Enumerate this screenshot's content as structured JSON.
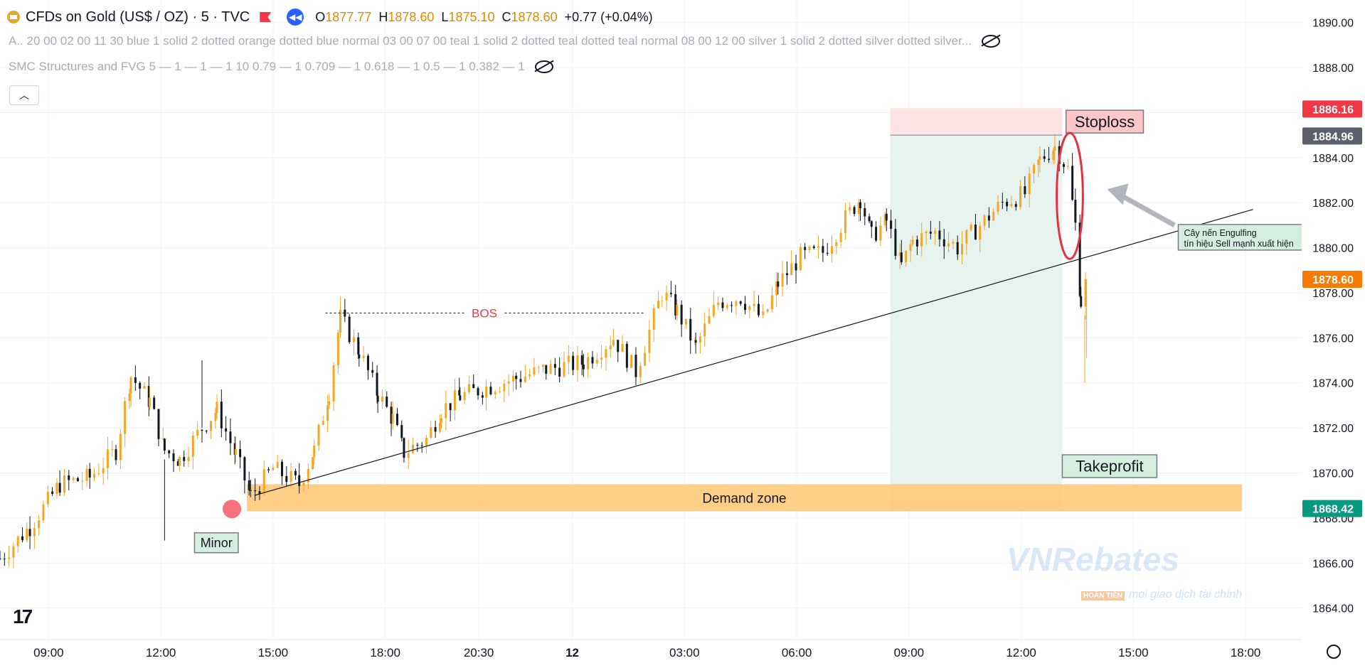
{
  "header": {
    "symbol_title": "CFDs on Gold (US$ / OZ) · 5 · TVC",
    "open_label": "O",
    "open": "1877.77",
    "high_label": "H",
    "high": "1878.60",
    "low_label": "L",
    "low": "1875.10",
    "close_label": "C",
    "close": "1878.60",
    "change": "+0.77 (+0.04%)"
  },
  "indicators": [
    {
      "text": "A.. 20 00 02 00 11 30 blue 1 solid 2 dotted orange dotted blue normal 03 00 07 00 teal 1 solid 2 dotted teal dotted teal normal 08 00 12 00 silver 1 solid 2 dotted silver dotted silver..."
    },
    {
      "text": "SMC Structures and FVG 5 — 1 — 1 — 1 10 0.79 — 1 0.709 — 1 0.618 — 1 0.5 — 1 0.382 — 1"
    }
  ],
  "icons": {
    "collapse": "chevron-up-icon",
    "visibility": "eye-off-icon",
    "settings": "gear-icon",
    "logo": "tradingview-logo-icon",
    "replay": "replay-icon",
    "flag": "flag-icon"
  },
  "watermark": {
    "brand": "VNRebates",
    "tag": "HOÀN TIỀN",
    "slogan": "mọi giao dịch tài chính"
  },
  "colors": {
    "up": "#f5a623",
    "down": "#131722",
    "accent": "#2962ff",
    "stoploss_zone": "#fde4e4",
    "profit_zone": "#e6f3ee",
    "demand_zone": "#ffc97a"
  },
  "chart_data": {
    "type": "candlestick",
    "ylim": [
      1862.6,
      1891.0
    ],
    "y_ticks": [
      "1890.00",
      "1888.00",
      "1886.00",
      "1884.00",
      "1882.00",
      "1880.00",
      "1878.00",
      "1876.00",
      "1874.00",
      "1872.00",
      "1870.00",
      "1868.00",
      "1866.00",
      "1864.00"
    ],
    "x_ticks": [
      {
        "label": "09:00",
        "t": 0.5
      },
      {
        "label": "12:00",
        "t": 3.5
      },
      {
        "label": "15:00",
        "t": 6.5
      },
      {
        "label": "18:00",
        "t": 9.5
      },
      {
        "label": "20:30",
        "t": 12.0
      },
      {
        "label": "12",
        "t": 14.5
      },
      {
        "label": "03:00",
        "t": 17.5
      },
      {
        "label": "06:00",
        "t": 20.5
      },
      {
        "label": "09:00",
        "t": 23.5
      },
      {
        "label": "12:00",
        "t": 26.5
      },
      {
        "label": "15:00",
        "t": 29.5
      },
      {
        "label": "18:00",
        "t": 32.5
      }
    ],
    "xlim": [
      -0.8,
      34.0
    ],
    "price_labels": [
      {
        "value": "1886.16",
        "price": 1886.16,
        "color": "#f23645"
      },
      {
        "value": "1884.96",
        "price": 1884.96,
        "color": "#5d606b"
      },
      {
        "value": "1878.60",
        "price": 1878.6,
        "color": "#f57c00"
      },
      {
        "value": "1868.42",
        "price": 1868.42,
        "color": "#089981"
      }
    ],
    "candle_path": [
      [
        -0.8,
        1866.2
      ],
      [
        0.0,
        1867.6
      ],
      [
        0.8,
        1869.5
      ],
      [
        1.6,
        1869.8
      ],
      [
        2.3,
        1871.0
      ],
      [
        2.7,
        1874.3
      ],
      [
        3.2,
        1873.2
      ],
      [
        3.6,
        1871.0
      ],
      [
        4.0,
        1870.6
      ],
      [
        4.6,
        1872.0
      ],
      [
        5.0,
        1872.8
      ],
      [
        5.5,
        1870.8
      ],
      [
        5.9,
        1869.0
      ],
      [
        6.5,
        1870.2
      ],
      [
        7.2,
        1869.5
      ],
      [
        7.6,
        1871.0
      ],
      [
        8.0,
        1873.6
      ],
      [
        8.3,
        1876.9
      ],
      [
        8.8,
        1875.4
      ],
      [
        9.3,
        1873.5
      ],
      [
        9.7,
        1872.4
      ],
      [
        10.0,
        1870.9
      ],
      [
        10.6,
        1871.5
      ],
      [
        11.0,
        1872.8
      ],
      [
        11.5,
        1873.4
      ],
      [
        12.2,
        1873.8
      ],
      [
        13.0,
        1874.2
      ],
      [
        13.8,
        1874.6
      ],
      [
        14.8,
        1874.9
      ],
      [
        15.6,
        1876.0
      ],
      [
        16.2,
        1874.5
      ],
      [
        16.9,
        1878.0
      ],
      [
        17.3,
        1877.2
      ],
      [
        17.8,
        1875.6
      ],
      [
        18.4,
        1877.6
      ],
      [
        19.0,
        1877.8
      ],
      [
        19.6,
        1876.8
      ],
      [
        20.0,
        1878.4
      ],
      [
        20.6,
        1879.6
      ],
      [
        21.2,
        1879.8
      ],
      [
        21.8,
        1881.3
      ],
      [
        22.2,
        1882.2
      ],
      [
        22.5,
        1880.5
      ],
      [
        22.9,
        1881.2
      ],
      [
        23.3,
        1879.2
      ],
      [
        23.6,
        1880.3
      ],
      [
        24.2,
        1880.7
      ],
      [
        24.8,
        1880.0
      ],
      [
        25.4,
        1881.0
      ],
      [
        26.0,
        1882.0
      ],
      [
        26.6,
        1882.4
      ],
      [
        27.0,
        1883.9
      ],
      [
        27.4,
        1884.5
      ],
      [
        27.75,
        1883.5
      ],
      [
        27.95,
        1881.0
      ],
      [
        28.1,
        1877.6
      ],
      [
        28.25,
        1878.6
      ]
    ],
    "annotations": {
      "bos": {
        "label": "BOS",
        "x1": 7.9,
        "x2": 16.4,
        "price": 1877.1
      },
      "trendline": {
        "x1": 6.0,
        "p1": 1869.0,
        "x2": 32.7,
        "p2": 1881.7
      },
      "demand_zone": {
        "label": "Demand zone",
        "x1": 5.8,
        "x2": 32.4,
        "p_top": 1869.5,
        "p_bottom": 1868.3
      },
      "stoploss_zone": {
        "x1": 23.0,
        "x2": 27.6,
        "p_top": 1886.2,
        "p_bottom": 1885.0
      },
      "profit_zone": {
        "x1": 23.0,
        "x2": 27.6,
        "p_top": 1885.0,
        "p_bottom": 1868.3
      },
      "stoploss_label": {
        "label": "Stoploss",
        "x": 27.7,
        "price": 1885.6
      },
      "takeprofit_label": {
        "label": "Takeprofit",
        "x": 27.6,
        "price": 1870.3
      },
      "minor_label": {
        "label": "Minor",
        "x": 4.4,
        "price": 1866.9
      },
      "minor_marker": {
        "x": 5.4,
        "price": 1868.4
      },
      "engulf_ellipse": {
        "x": 27.8,
        "price": 1882.3,
        "rx": 0.35,
        "rp": 2.8
      },
      "engulf_note": {
        "line1": "Cây nến Engulfing",
        "line2": "tín hiệu Sell mạnh xuất hiện",
        "x": 30.7,
        "price": 1880.4
      },
      "arrow": {
        "x1": 30.6,
        "p1": 1881.0,
        "x2": 28.8,
        "p2": 1882.6
      }
    }
  }
}
